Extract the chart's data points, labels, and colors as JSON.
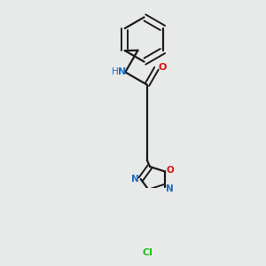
{
  "background_color": "#e8eaea",
  "bond_color": "#1a1a1a",
  "atom_colors": {
    "N": "#1a6bbf",
    "O": "#dd1111",
    "Cl": "#22bb22",
    "H": "#1a6bbf"
  },
  "figsize": [
    3.0,
    3.0
  ],
  "dpi": 100,
  "lw": 1.6,
  "lw_double": 1.4
}
